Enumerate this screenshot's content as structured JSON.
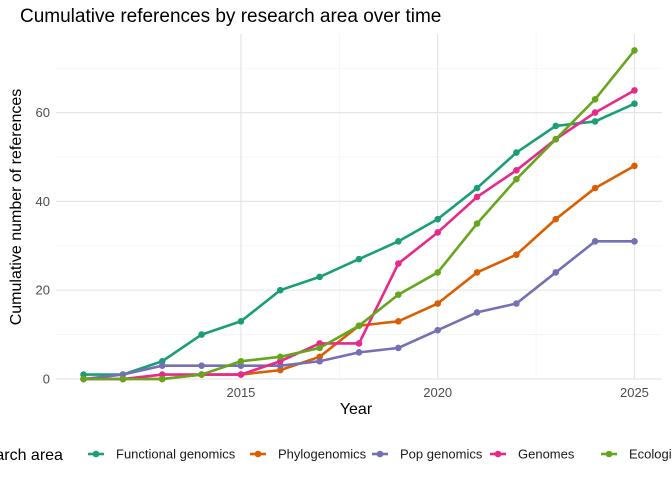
{
  "chart_data": {
    "type": "line",
    "title": "Cumulative references by research area over time",
    "xlabel": "Year",
    "ylabel": "Cumulative number of references",
    "x": [
      2011,
      2012,
      2013,
      2014,
      2015,
      2016,
      2017,
      2018,
      2019,
      2020,
      2021,
      2022,
      2023,
      2024,
      2025
    ],
    "xlim": [
      2010.3,
      2025.7
    ],
    "ylim": [
      0,
      77.7
    ],
    "xticks": [
      2015,
      2020,
      2025
    ],
    "yticks": [
      0,
      20,
      40,
      60
    ],
    "grid": true,
    "legend": {
      "title": "Research area",
      "position": "bottom"
    },
    "series": [
      {
        "name": "Functional genomics",
        "color": "#1b9e77",
        "values": [
          1,
          1,
          4,
          10,
          13,
          20,
          23,
          27,
          31,
          36,
          43,
          51,
          57,
          58,
          62
        ]
      },
      {
        "name": "Phylogenomics",
        "color": "#d95f02",
        "values": [
          0,
          0,
          0,
          1,
          1,
          2,
          5,
          12,
          13,
          17,
          24,
          28,
          36,
          43,
          48
        ]
      },
      {
        "name": "Pop genomics",
        "color": "#7570b3",
        "values": [
          0,
          1,
          3,
          3,
          3,
          3,
          4,
          6,
          7,
          11,
          15,
          17,
          24,
          31,
          31
        ]
      },
      {
        "name": "Genomes",
        "color": "#e7298a",
        "values": [
          0,
          0,
          1,
          1,
          1,
          4,
          8,
          8,
          26,
          33,
          41,
          47,
          54,
          60,
          65
        ]
      },
      {
        "name": "Ecological",
        "color": "#66a61e",
        "values": [
          0,
          0,
          0,
          1,
          4,
          5,
          7,
          12,
          19,
          24,
          35,
          45,
          54,
          63,
          74
        ]
      }
    ]
  }
}
